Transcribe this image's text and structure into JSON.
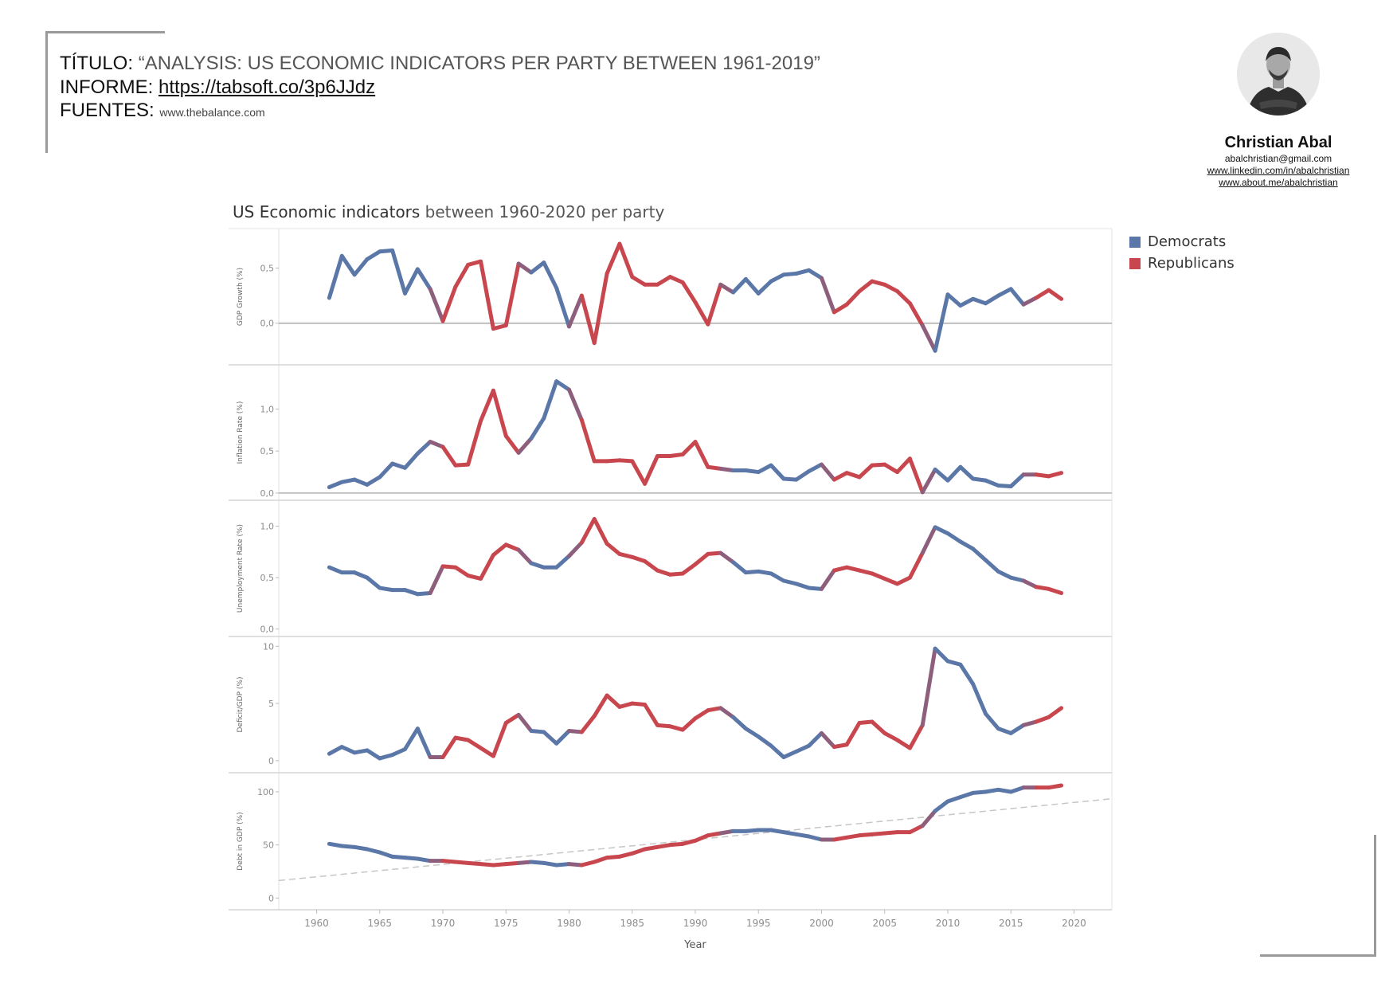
{
  "header": {
    "title_key": "TÍTULO:",
    "title_value": "“ANALYSIS: US ECONOMIC INDICATORS PER PARTY BETWEEN 1961-2019”",
    "report_key": "INFORME:",
    "report_link": "https://tabsoft.co/3p6JJdz",
    "sources_key": "FUENTES:",
    "sources_value": "www.thebalance.com"
  },
  "author": {
    "name": "Christian Abal",
    "email": "abalchristian@gmail.com",
    "linkedin": "www.linkedin.com/in/abalchristian",
    "about": "www.about.me/abalchristian"
  },
  "chart_title_bold": "US Economic indicators",
  "chart_title_rest": " between 1960-2020 per party",
  "legend": [
    {
      "label": "Democrats",
      "color": "#5a77a8"
    },
    {
      "label": "Republicans",
      "color": "#c8474e"
    }
  ],
  "colors": {
    "Democrats": "#5a77a8",
    "Republicans": "#c8474e"
  },
  "chart_data": {
    "type": "line",
    "xlabel": "Year",
    "xlim": [
      1957,
      2023
    ],
    "xticks": [
      1960,
      1965,
      1970,
      1975,
      1980,
      1985,
      1990,
      1995,
      2000,
      2005,
      2010,
      2015,
      2020
    ],
    "legend_position": "right",
    "years": [
      1961,
      1962,
      1963,
      1964,
      1965,
      1966,
      1967,
      1968,
      1969,
      1970,
      1971,
      1972,
      1973,
      1974,
      1975,
      1976,
      1977,
      1978,
      1979,
      1980,
      1981,
      1982,
      1983,
      1984,
      1985,
      1986,
      1987,
      1988,
      1989,
      1990,
      1991,
      1992,
      1993,
      1994,
      1995,
      1996,
      1997,
      1998,
      1999,
      2000,
      2001,
      2002,
      2003,
      2004,
      2005,
      2006,
      2007,
      2008,
      2009,
      2010,
      2011,
      2012,
      2013,
      2014,
      2015,
      2016,
      2017,
      2018,
      2019
    ],
    "party": [
      "D",
      "D",
      "D",
      "D",
      "D",
      "D",
      "D",
      "D",
      "D",
      "R",
      "R",
      "R",
      "R",
      "R",
      "R",
      "R",
      "D",
      "D",
      "D",
      "D",
      "R",
      "R",
      "R",
      "R",
      "R",
      "R",
      "R",
      "R",
      "R",
      "R",
      "R",
      "R",
      "D",
      "D",
      "D",
      "D",
      "D",
      "D",
      "D",
      "D",
      "R",
      "R",
      "R",
      "R",
      "R",
      "R",
      "R",
      "R",
      "D",
      "D",
      "D",
      "D",
      "D",
      "D",
      "D",
      "D",
      "R",
      "R",
      "R"
    ],
    "panels": [
      {
        "ylabel": "GDP Growth (%)",
        "yticks": [
          0.0,
          0.5
        ],
        "ytick_labels": [
          "0,0",
          "0,5"
        ],
        "ylim": [
          -0.32,
          0.8
        ],
        "zero_line": true,
        "values": [
          0.23,
          0.61,
          0.44,
          0.58,
          0.65,
          0.66,
          0.27,
          0.49,
          0.31,
          0.02,
          0.33,
          0.53,
          0.56,
          -0.05,
          -0.02,
          0.54,
          0.46,
          0.55,
          0.32,
          -0.03,
          0.25,
          -0.18,
          0.45,
          0.72,
          0.42,
          0.35,
          0.35,
          0.42,
          0.37,
          0.19,
          -0.01,
          0.35,
          0.28,
          0.4,
          0.27,
          0.38,
          0.44,
          0.45,
          0.48,
          0.41,
          0.1,
          0.17,
          0.29,
          0.38,
          0.35,
          0.29,
          0.18,
          -0.02,
          -0.25,
          0.26,
          0.16,
          0.22,
          0.18,
          0.25,
          0.31,
          0.17,
          0.23,
          0.3,
          0.22
        ]
      },
      {
        "ylabel": "Inflation Rate (%)",
        "yticks": [
          0.0,
          0.5,
          1.0
        ],
        "ytick_labels": [
          "0,0",
          "0,5",
          "1,0"
        ],
        "ylim": [
          -0.01,
          1.45
        ],
        "zero_line": true,
        "values": [
          0.07,
          0.13,
          0.16,
          0.1,
          0.19,
          0.35,
          0.3,
          0.47,
          0.61,
          0.55,
          0.33,
          0.34,
          0.86,
          1.22,
          0.68,
          0.48,
          0.65,
          0.89,
          1.33,
          1.23,
          0.87,
          0.38,
          0.38,
          0.39,
          0.38,
          0.11,
          0.44,
          0.44,
          0.46,
          0.61,
          0.31,
          0.29,
          0.27,
          0.27,
          0.25,
          0.33,
          0.17,
          0.16,
          0.26,
          0.34,
          0.16,
          0.24,
          0.19,
          0.33,
          0.34,
          0.25,
          0.41,
          0.01,
          0.28,
          0.15,
          0.31,
          0.17,
          0.15,
          0.09,
          0.08,
          0.22,
          0.22,
          0.2,
          0.24
        ]
      },
      {
        "ylabel": "Unemployment Rate (%)",
        "yticks": [
          0.0,
          0.5,
          1.0
        ],
        "ytick_labels": [
          "0,0",
          "0,5",
          "1,0"
        ],
        "ylim": [
          -0.01,
          1.19
        ],
        "zero_line": false,
        "values": [
          0.6,
          0.55,
          0.55,
          0.5,
          0.4,
          0.38,
          0.38,
          0.34,
          0.35,
          0.61,
          0.6,
          0.52,
          0.49,
          0.72,
          0.82,
          0.77,
          0.64,
          0.6,
          0.6,
          0.71,
          0.84,
          1.07,
          0.83,
          0.73,
          0.7,
          0.66,
          0.57,
          0.53,
          0.54,
          0.63,
          0.73,
          0.74,
          0.65,
          0.55,
          0.56,
          0.54,
          0.47,
          0.44,
          0.4,
          0.39,
          0.57,
          0.6,
          0.57,
          0.54,
          0.49,
          0.44,
          0.5,
          0.74,
          0.99,
          0.93,
          0.85,
          0.78,
          0.67,
          0.56,
          0.5,
          0.47,
          0.41,
          0.39,
          0.35
        ]
      },
      {
        "ylabel": "Deficit/GDP (%)",
        "yticks": [
          0,
          5,
          10
        ],
        "ytick_labels": [
          "0",
          "5",
          "10"
        ],
        "ylim": [
          -0.5,
          10.3
        ],
        "zero_line": false,
        "values": [
          0.6,
          1.2,
          0.7,
          0.9,
          0.2,
          0.5,
          1.0,
          2.8,
          0.3,
          0.3,
          2.0,
          1.8,
          1.1,
          0.4,
          3.3,
          4.0,
          2.6,
          2.5,
          1.5,
          2.6,
          2.5,
          3.9,
          5.7,
          4.7,
          5.0,
          4.9,
          3.1,
          3.0,
          2.7,
          3.7,
          4.4,
          4.6,
          3.8,
          2.8,
          2.1,
          1.3,
          0.3,
          0.8,
          1.3,
          2.4,
          1.2,
          1.4,
          3.3,
          3.4,
          2.4,
          1.8,
          1.1,
          3.1,
          9.8,
          8.7,
          8.4,
          6.7,
          4.1,
          2.8,
          2.4,
          3.1,
          3.4,
          3.8,
          4.6
        ]
      },
      {
        "ylabel": "Debt in GDP (%)",
        "yticks": [
          0,
          50,
          100
        ],
        "ytick_labels": [
          "0",
          "50",
          "100"
        ],
        "ylim": [
          -5,
          112
        ],
        "zero_line": false,
        "trend": {
          "from": [
            1957,
            16.5
          ],
          "to": [
            2023,
            93.5
          ]
        },
        "values": [
          51,
          49,
          48,
          46,
          43,
          39,
          38,
          37,
          35,
          35,
          34,
          33,
          32,
          31,
          32,
          33,
          34,
          33,
          31,
          32,
          31,
          34,
          38,
          39,
          42,
          46,
          48,
          50,
          51,
          54,
          59,
          61,
          63,
          63,
          64,
          64,
          62,
          60,
          58,
          55,
          55,
          57,
          59,
          60,
          61,
          62,
          62,
          68,
          82,
          91,
          95,
          99,
          100,
          102,
          100,
          104,
          104,
          104,
          106
        ]
      }
    ]
  }
}
